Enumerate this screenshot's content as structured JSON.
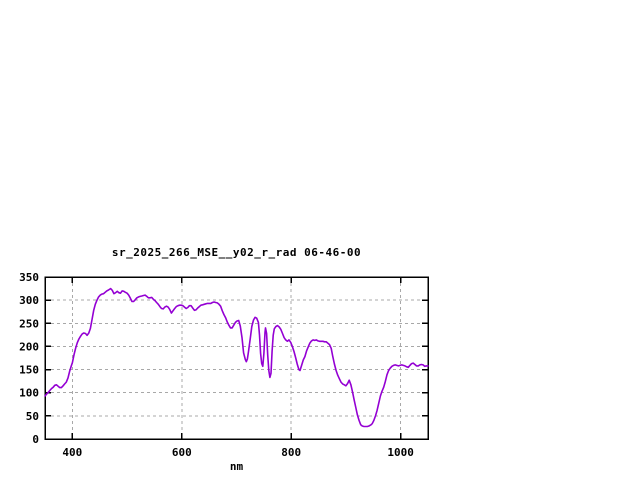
{
  "window": {
    "background_color": "#ffffff"
  },
  "chart_data": {
    "type": "line",
    "title": "sr_2025_266_MSE__y02_r_rad 06-46-00",
    "xlabel": "nm",
    "ylabel": "",
    "xlim": [
      350,
      1050
    ],
    "ylim": [
      0,
      350
    ],
    "xticks": [
      400,
      600,
      800,
      1000
    ],
    "xtick_labels": [
      "400",
      "600",
      "800",
      "1000"
    ],
    "yticks": [
      0,
      50,
      100,
      150,
      200,
      250,
      300,
      350
    ],
    "ytick_labels": [
      "0",
      "50",
      "100",
      "150",
      "200",
      "250",
      "300",
      "350"
    ],
    "grid": true,
    "grid_style": "dashed",
    "legend_position": "none",
    "line_color": "#9400d3",
    "grid_color": "#a8a8a8",
    "border_color": "#000000",
    "text_color": "#000000",
    "series": [
      {
        "points": [
          [
            350,
            93
          ],
          [
            353,
            97
          ],
          [
            356,
            101
          ],
          [
            359,
            105
          ],
          [
            362,
            109
          ],
          [
            365,
            112
          ],
          [
            368,
            116
          ],
          [
            371,
            117
          ],
          [
            374,
            114
          ],
          [
            377,
            111
          ],
          [
            380,
            111
          ],
          [
            383,
            115
          ],
          [
            386,
            119
          ],
          [
            389,
            123
          ],
          [
            392,
            132
          ],
          [
            395,
            146
          ],
          [
            398,
            158
          ],
          [
            400,
            165
          ],
          [
            403,
            182
          ],
          [
            406,
            196
          ],
          [
            409,
            208
          ],
          [
            412,
            216
          ],
          [
            415,
            222
          ],
          [
            418,
            227
          ],
          [
            421,
            229
          ],
          [
            424,
            228
          ],
          [
            427,
            224
          ],
          [
            430,
            229
          ],
          [
            433,
            239
          ],
          [
            436,
            259
          ],
          [
            439,
            278
          ],
          [
            442,
            291
          ],
          [
            445,
            300
          ],
          [
            448,
            307
          ],
          [
            451,
            311
          ],
          [
            454,
            313
          ],
          [
            457,
            314
          ],
          [
            460,
            317
          ],
          [
            463,
            320
          ],
          [
            466,
            322
          ],
          [
            470,
            325
          ],
          [
            473,
            321
          ],
          [
            476,
            314
          ],
          [
            479,
            316
          ],
          [
            482,
            319
          ],
          [
            485,
            316
          ],
          [
            488,
            315
          ],
          [
            491,
            320
          ],
          [
            494,
            319
          ],
          [
            497,
            317
          ],
          [
            500,
            315
          ],
          [
            503,
            311
          ],
          [
            506,
            304
          ],
          [
            509,
            297
          ],
          [
            512,
            297
          ],
          [
            515,
            301
          ],
          [
            518,
            305
          ],
          [
            521,
            307
          ],
          [
            524,
            308
          ],
          [
            527,
            309
          ],
          [
            530,
            310
          ],
          [
            533,
            311
          ],
          [
            536,
            308
          ],
          [
            539,
            305
          ],
          [
            542,
            305
          ],
          [
            545,
            306
          ],
          [
            548,
            302
          ],
          [
            551,
            299
          ],
          [
            554,
            295
          ],
          [
            557,
            291
          ],
          [
            560,
            286
          ],
          [
            563,
            282
          ],
          [
            566,
            281
          ],
          [
            569,
            285
          ],
          [
            572,
            287
          ],
          [
            575,
            285
          ],
          [
            578,
            280
          ],
          [
            581,
            272
          ],
          [
            584,
            277
          ],
          [
            587,
            282
          ],
          [
            590,
            286
          ],
          [
            593,
            288
          ],
          [
            596,
            289
          ],
          [
            599,
            289
          ],
          [
            602,
            288
          ],
          [
            605,
            285
          ],
          [
            608,
            282
          ],
          [
            611,
            284
          ],
          [
            614,
            288
          ],
          [
            617,
            288
          ],
          [
            620,
            283
          ],
          [
            623,
            278
          ],
          [
            626,
            279
          ],
          [
            629,
            283
          ],
          [
            632,
            286
          ],
          [
            635,
            289
          ],
          [
            638,
            290
          ],
          [
            641,
            291
          ],
          [
            644,
            292
          ],
          [
            647,
            293
          ],
          [
            650,
            293
          ],
          [
            653,
            293
          ],
          [
            656,
            295
          ],
          [
            659,
            296
          ],
          [
            662,
            295
          ],
          [
            665,
            294
          ],
          [
            668,
            291
          ],
          [
            671,
            287
          ],
          [
            674,
            277
          ],
          [
            677,
            269
          ],
          [
            680,
            262
          ],
          [
            683,
            253
          ],
          [
            686,
            246
          ],
          [
            689,
            240
          ],
          [
            692,
            240
          ],
          [
            695,
            246
          ],
          [
            698,
            252
          ],
          [
            701,
            255
          ],
          [
            704,
            256
          ],
          [
            707,
            244
          ],
          [
            710,
            219
          ],
          [
            713,
            186
          ],
          [
            716,
            172
          ],
          [
            718,
            167
          ],
          [
            720,
            173
          ],
          [
            722,
            189
          ],
          [
            725,
            216
          ],
          [
            728,
            243
          ],
          [
            731,
            257
          ],
          [
            734,
            263
          ],
          [
            737,
            261
          ],
          [
            740,
            252
          ],
          [
            742,
            225
          ],
          [
            744,
            185
          ],
          [
            746,
            163
          ],
          [
            748,
            157
          ],
          [
            750,
            185
          ],
          [
            752,
            230
          ],
          [
            753,
            240
          ],
          [
            755,
            228
          ],
          [
            757,
            182
          ],
          [
            759,
            148
          ],
          [
            761,
            133
          ],
          [
            763,
            142
          ],
          [
            765,
            190
          ],
          [
            767,
            224
          ],
          [
            769,
            238
          ],
          [
            772,
            243
          ],
          [
            775,
            245
          ],
          [
            778,
            242
          ],
          [
            781,
            237
          ],
          [
            784,
            228
          ],
          [
            787,
            219
          ],
          [
            790,
            214
          ],
          [
            793,
            211
          ],
          [
            796,
            214
          ],
          [
            799,
            209
          ],
          [
            802,
            200
          ],
          [
            805,
            189
          ],
          [
            808,
            176
          ],
          [
            811,
            162
          ],
          [
            814,
            150
          ],
          [
            816,
            148
          ],
          [
            819,
            159
          ],
          [
            822,
            171
          ],
          [
            825,
            178
          ],
          [
            828,
            190
          ],
          [
            831,
            199
          ],
          [
            834,
            207
          ],
          [
            837,
            212
          ],
          [
            840,
            214
          ],
          [
            843,
            213
          ],
          [
            846,
            214
          ],
          [
            849,
            212
          ],
          [
            852,
            211
          ],
          [
            855,
            211
          ],
          [
            858,
            211
          ],
          [
            861,
            210
          ],
          [
            864,
            210
          ],
          [
            867,
            207
          ],
          [
            870,
            204
          ],
          [
            873,
            196
          ],
          [
            876,
            178
          ],
          [
            879,
            162
          ],
          [
            882,
            148
          ],
          [
            885,
            138
          ],
          [
            888,
            130
          ],
          [
            891,
            123
          ],
          [
            894,
            119
          ],
          [
            897,
            117
          ],
          [
            900,
            115
          ],
          [
            903,
            120
          ],
          [
            906,
            127
          ],
          [
            909,
            117
          ],
          [
            912,
            102
          ],
          [
            915,
            85
          ],
          [
            918,
            68
          ],
          [
            921,
            52
          ],
          [
            924,
            40
          ],
          [
            927,
            31
          ],
          [
            930,
            28
          ],
          [
            933,
            27
          ],
          [
            936,
            27
          ],
          [
            939,
            27
          ],
          [
            942,
            28
          ],
          [
            945,
            30
          ],
          [
            948,
            33
          ],
          [
            951,
            40
          ],
          [
            954,
            50
          ],
          [
            957,
            62
          ],
          [
            960,
            78
          ],
          [
            963,
            93
          ],
          [
            966,
            103
          ],
          [
            969,
            112
          ],
          [
            972,
            124
          ],
          [
            975,
            139
          ],
          [
            978,
            148
          ],
          [
            981,
            153
          ],
          [
            984,
            157
          ],
          [
            987,
            159
          ],
          [
            990,
            160
          ],
          [
            993,
            159
          ],
          [
            996,
            158
          ],
          [
            999,
            159
          ],
          [
            1002,
            160
          ],
          [
            1005,
            159
          ],
          [
            1008,
            158
          ],
          [
            1011,
            156
          ],
          [
            1014,
            155
          ],
          [
            1017,
            159
          ],
          [
            1020,
            163
          ],
          [
            1023,
            164
          ],
          [
            1026,
            161
          ],
          [
            1029,
            158
          ],
          [
            1032,
            158
          ],
          [
            1035,
            160
          ],
          [
            1038,
            161
          ],
          [
            1041,
            160
          ],
          [
            1044,
            157
          ],
          [
            1047,
            158
          ],
          [
            1050,
            158
          ]
        ]
      }
    ]
  }
}
